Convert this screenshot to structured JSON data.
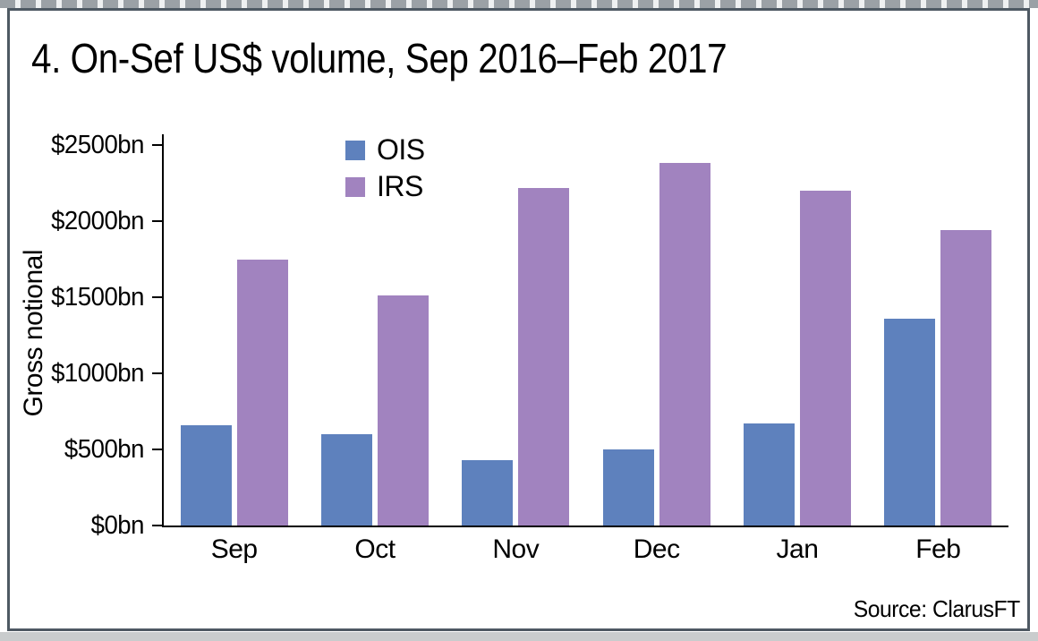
{
  "figure": {
    "title": "4. On-Sef US$ volume, Sep 2016–Feb 2017",
    "source": "Source: ClarusFT"
  },
  "chart_data": {
    "type": "bar",
    "title": "4. On-Sef US$ volume, Sep 2016–Feb 2017",
    "categories": [
      "Sep",
      "Oct",
      "Nov",
      "Dec",
      "Jan",
      "Feb"
    ],
    "series": [
      {
        "name": "OIS",
        "color": "#5E81BD",
        "values": [
          660,
          600,
          430,
          500,
          670,
          1360
        ]
      },
      {
        "name": "IRS",
        "color": "#A183BF",
        "values": [
          1750,
          1510,
          2220,
          2380,
          2200,
          1940
        ]
      }
    ],
    "xlabel": "",
    "ylabel": "Gross notional",
    "ylim": [
      0,
      2500
    ],
    "ytick_interval": 500,
    "ytick_labels": [
      "$0bn",
      "$500bn",
      "$1000bn",
      "$1500bn",
      "$2000bn",
      "$2500bn"
    ],
    "grid": false,
    "legend_position": "inside-top-center",
    "source": "Source: ClarusFT",
    "colors": {
      "axis": "#000000",
      "frame_border": "#4e5963",
      "background": "#ffffff"
    }
  }
}
